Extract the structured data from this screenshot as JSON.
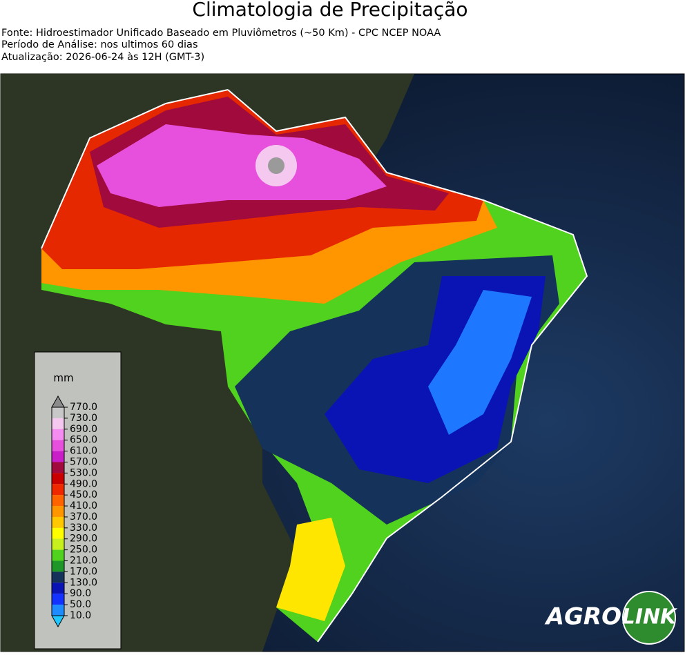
{
  "header": {
    "title": "Climatologia de Precipitação",
    "lines": [
      "Fonte: Hidroestimador Unificado Baseado em Pluviômetros (~50 Km) - CPC NCEP NOAA",
      "Período de Análise: nos ultimos 60 dias",
      "Atualização: 2026-06-24 às 12H (GMT-3)"
    ]
  },
  "colorbar": {
    "unit": "mm",
    "ticks": [
      {
        "value": 770,
        "label": "770.0"
      },
      {
        "value": 730,
        "label": "730.0"
      },
      {
        "value": 690,
        "label": "690.0"
      },
      {
        "value": 650,
        "label": "650.0"
      },
      {
        "value": 610,
        "label": "610.0"
      },
      {
        "value": 570,
        "label": "570.0"
      },
      {
        "value": 530,
        "label": "530.0"
      },
      {
        "value": 490,
        "label": "490.0"
      },
      {
        "value": 450,
        "label": "450.0"
      },
      {
        "value": 410,
        "label": "410.0"
      },
      {
        "value": 370,
        "label": "370.0"
      },
      {
        "value": 330,
        "label": "330.0"
      },
      {
        "value": 290,
        "label": "290.0"
      },
      {
        "value": 250,
        "label": "250.0"
      },
      {
        "value": 210,
        "label": "210.0"
      },
      {
        "value": 170,
        "label": "170.0"
      },
      {
        "value": 130,
        "label": "130.0"
      },
      {
        "value": 90,
        "label": "90.0"
      },
      {
        "value": 50,
        "label": "50.0"
      },
      {
        "value": 10,
        "label": "10.0"
      }
    ],
    "colors": [
      "#c8c8c8",
      "#f5c8f0",
      "#f58cf0",
      "#e650dc",
      "#c81ec8",
      "#a00a3c",
      "#c80000",
      "#f02800",
      "#ff6400",
      "#ff9600",
      "#ffc800",
      "#ffff00",
      "#c8f01e",
      "#50d21e",
      "#1e9628",
      "#14325a",
      "#0a14b4",
      "#1432ff",
      "#1e8cff"
    ],
    "extend_colors": {
      "over": "#8c8c8c",
      "under": "#1ec8ff"
    }
  },
  "logo": {
    "left": "AGRO",
    "right": "LINK"
  }
}
